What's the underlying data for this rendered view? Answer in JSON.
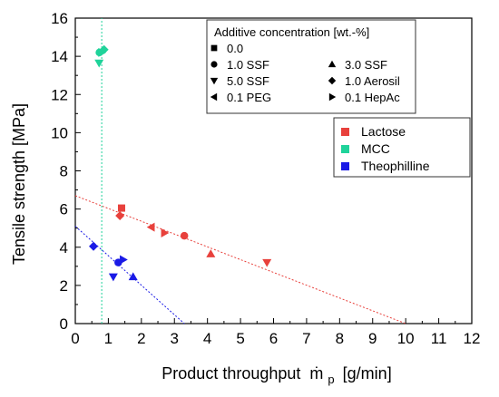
{
  "chart_data": {
    "type": "scatter",
    "xlabel": "Product throughput",
    "xlabel_symbol": "ṁ",
    "xlabel_sub": "p",
    "xlabel_unit": "[g/min]",
    "ylabel": "Tensile strength [MPa]",
    "xlim": [
      0,
      12
    ],
    "ylim": [
      0,
      16
    ],
    "x_ticks": [
      "0",
      "1",
      "2",
      "3",
      "4",
      "5",
      "6",
      "7",
      "8",
      "9",
      "10",
      "11",
      "12"
    ],
    "y_ticks": [
      "0",
      "2",
      "4",
      "6",
      "8",
      "10",
      "12",
      "14",
      "16"
    ],
    "grid": false,
    "marker_legend": {
      "title": "Additive concentration [wt.-%]",
      "placement": "top-right",
      "entries": [
        {
          "marker": "square",
          "label": "0.0"
        },
        {
          "marker": "circle",
          "label": "1.0 SSF"
        },
        {
          "marker": "triangle-up",
          "label": "3.0 SSF"
        },
        {
          "marker": "triangle-down",
          "label": "5.0 SSF"
        },
        {
          "marker": "diamond",
          "label": "1.0 Aerosil"
        },
        {
          "marker": "triangle-left",
          "label": "0.1 PEG"
        },
        {
          "marker": "triangle-right",
          "label": "0.1 HepAc"
        }
      ]
    },
    "series_legend": {
      "placement": "right",
      "entries": [
        {
          "label": "Lactose",
          "color": "#e8413c"
        },
        {
          "label": "MCC",
          "color": "#1fd39a"
        },
        {
          "label": "Theophilline",
          "color": "#1a1ae6"
        }
      ]
    },
    "series": [
      {
        "name": "Lactose",
        "color": "#e8413c",
        "points": [
          {
            "x": 1.4,
            "y": 6.05,
            "marker": "square"
          },
          {
            "x": 1.35,
            "y": 5.65,
            "marker": "diamond"
          },
          {
            "x": 2.3,
            "y": 5.05,
            "marker": "triangle-left"
          },
          {
            "x": 2.7,
            "y": 4.75,
            "marker": "triangle-right"
          },
          {
            "x": 3.3,
            "y": 4.6,
            "marker": "circle"
          },
          {
            "x": 4.1,
            "y": 3.65,
            "marker": "triangle-up"
          },
          {
            "x": 5.8,
            "y": 3.2,
            "marker": "triangle-down"
          }
        ],
        "trendline": {
          "x": [
            0,
            10.0
          ],
          "y": [
            6.7,
            0
          ]
        }
      },
      {
        "name": "MCC",
        "color": "#1fd39a",
        "points": [
          {
            "x": 0.72,
            "y": 13.65,
            "marker": "triangle-down"
          },
          {
            "x": 0.73,
            "y": 14.2,
            "marker": "circle"
          },
          {
            "x": 0.8,
            "y": 14.2,
            "marker": "triangle-right"
          },
          {
            "x": 0.87,
            "y": 14.35,
            "marker": "diamond"
          }
        ],
        "trendline": {
          "x": [
            0.8,
            0.8
          ],
          "y": [
            0,
            16
          ]
        }
      },
      {
        "name": "Theophilline",
        "color": "#1a1ae6",
        "points": [
          {
            "x": 0.55,
            "y": 4.05,
            "marker": "diamond"
          },
          {
            "x": 1.15,
            "y": 2.45,
            "marker": "triangle-down"
          },
          {
            "x": 1.3,
            "y": 3.2,
            "marker": "circle"
          },
          {
            "x": 1.45,
            "y": 3.35,
            "marker": "triangle-right"
          },
          {
            "x": 1.75,
            "y": 2.45,
            "marker": "triangle-up"
          }
        ],
        "trendline": {
          "x": [
            0,
            3.3
          ],
          "y": [
            5.1,
            0
          ]
        }
      }
    ]
  }
}
